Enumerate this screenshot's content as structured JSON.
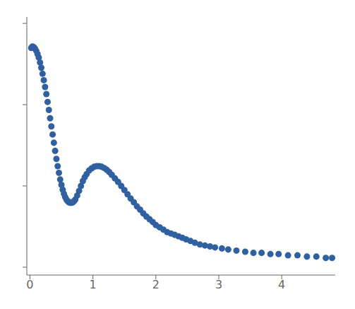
{
  "chart_data": {
    "type": "scatter",
    "x": [
      0.02,
      0.04,
      0.06,
      0.08,
      0.1,
      0.12,
      0.14,
      0.16,
      0.18,
      0.2,
      0.22,
      0.24,
      0.26,
      0.28,
      0.3,
      0.32,
      0.34,
      0.36,
      0.38,
      0.4,
      0.42,
      0.44,
      0.46,
      0.48,
      0.5,
      0.52,
      0.54,
      0.56,
      0.58,
      0.6,
      0.62,
      0.64,
      0.66,
      0.68,
      0.7,
      0.72,
      0.75,
      0.78,
      0.81,
      0.84,
      0.87,
      0.9,
      0.94,
      0.98,
      1.02,
      1.06,
      1.1,
      1.14,
      1.18,
      1.22,
      1.26,
      1.3,
      1.35,
      1.4,
      1.45,
      1.5,
      1.55,
      1.6,
      1.65,
      1.7,
      1.75,
      1.8,
      1.85,
      1.9,
      1.95,
      2.0,
      2.06,
      2.12,
      2.18,
      2.24,
      2.3,
      2.36,
      2.42,
      2.48,
      2.55,
      2.62,
      2.7,
      2.78,
      2.86,
      2.94,
      3.05,
      3.15,
      3.28,
      3.42,
      3.55,
      3.68,
      3.82,
      3.95,
      4.1,
      4.25,
      4.4,
      4.55,
      4.7,
      4.8
    ],
    "values": [
      5000,
      5200,
      5100,
      4900,
      4600,
      4200,
      3800,
      3300,
      2850,
      2400,
      2000,
      1650,
      1350,
      1080,
      860,
      680,
      540,
      430,
      340,
      270,
      215,
      175,
      145,
      120,
      103,
      90,
      80,
      73,
      68,
      65,
      63,
      62,
      62,
      63,
      65,
      68,
      76,
      87,
      100,
      115,
      128,
      140,
      155,
      165,
      172,
      175,
      175,
      172,
      166,
      158,
      148,
      137,
      124,
      112,
      100,
      89,
      79,
      70,
      63,
      56,
      51,
      46,
      42,
      39,
      36,
      33,
      31,
      29,
      27,
      26,
      25,
      24,
      23,
      22,
      21,
      20,
      19,
      18.5,
      18,
      17.5,
      17,
      16.5,
      16,
      15.5,
      15,
      15,
      14.5,
      14.5,
      14,
      14,
      13.5,
      13.5,
      13,
      13
    ],
    "color": "#3060a0",
    "log": "y",
    "xlim": [
      -0.05,
      4.85
    ],
    "ylim": [
      8,
      12000
    ],
    "xticks": [
      0,
      1,
      2,
      3,
      4
    ],
    "yticks": [
      10,
      100,
      1000,
      10000
    ],
    "tick_labels": "x",
    "grid": false
  }
}
